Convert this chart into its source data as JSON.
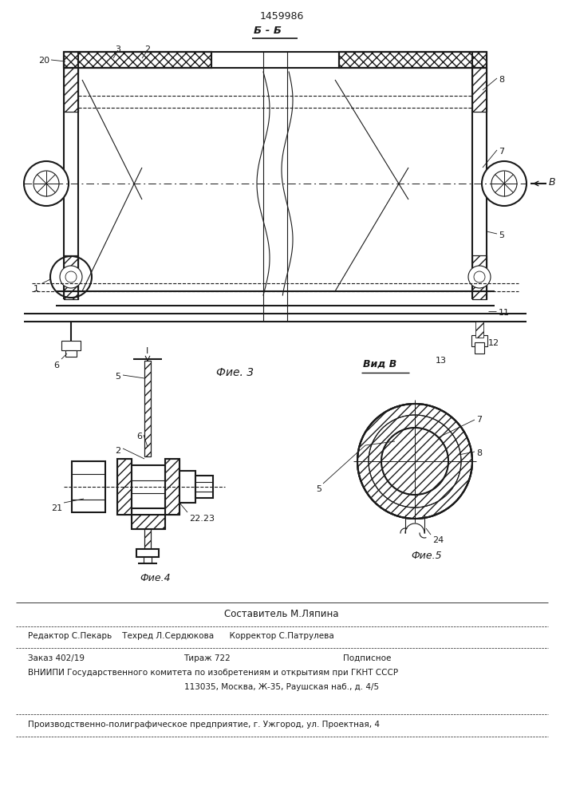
{
  "patent_number": "1459986",
  "bg_color": "#ffffff",
  "line_color": "#1a1a1a",
  "fig3_title": "Фие. 3",
  "fig4_title": "Фие.4",
  "fig5_title": "Фие.5",
  "section_label": "Б - Б",
  "view_label": "Вид В",
  "sestavitel": "Составитель М.Ляпина",
  "editor_line": "Редактор С.Пекарь    Техред Л.Сердюкова      Корректор С.Патрулева",
  "order_line": "Заказ 402/19",
  "tirazh": "Тираж 722",
  "podpisnoe": "Подписное",
  "vniipni_line": "ВНИИПИ Государственного комитета по изобретениям и открытиям при ГКНТ СССР",
  "address_line": "113035, Москва, Ж-35, Раушская наб., д. 4/5",
  "factory_line": "Производственно-полиграфическое предприятие, г. Ужгород, ул. Проектная, 4"
}
